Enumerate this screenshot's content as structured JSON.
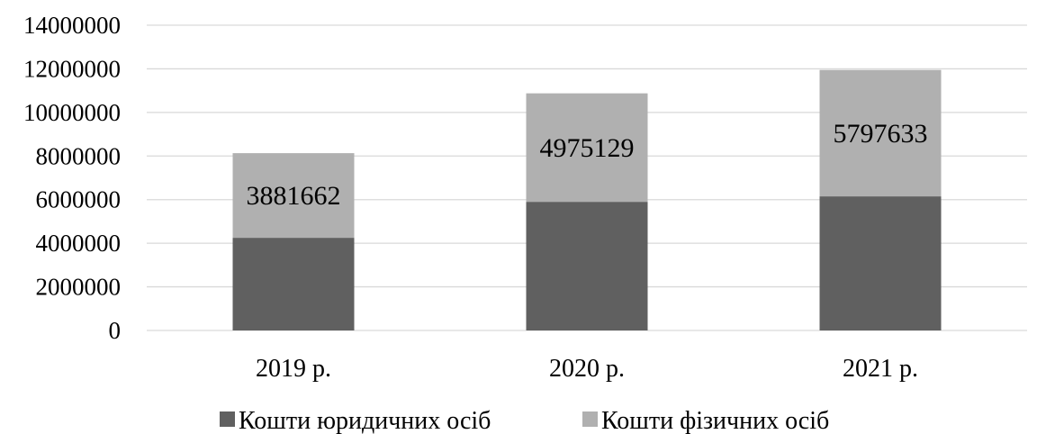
{
  "chart_data": {
    "type": "bar",
    "stacked": true,
    "categories": [
      "2019 р.",
      "2020 р.",
      "2021 р."
    ],
    "series": [
      {
        "name": "Кошти юридичних осіб",
        "color": "#606060",
        "values": [
          4250000,
          5900000,
          6150000
        ]
      },
      {
        "name": "Кошти фізичних осіб",
        "color": "#b0b0b0",
        "values": [
          3881662,
          4975129,
          5797633
        ],
        "labels": [
          "3881662",
          "4975129",
          "5797633"
        ]
      }
    ],
    "ylim": [
      0,
      14000000
    ],
    "yticks": [
      0,
      2000000,
      4000000,
      6000000,
      8000000,
      10000000,
      12000000,
      14000000
    ],
    "ytick_labels": [
      "0",
      "2000000",
      "4000000",
      "6000000",
      "8000000",
      "10000000",
      "12000000",
      "14000000"
    ],
    "grid": true,
    "gridline_color": "#d9d9d9",
    "legend_position": "bottom",
    "title": "",
    "xlabel": "",
    "ylabel": ""
  }
}
